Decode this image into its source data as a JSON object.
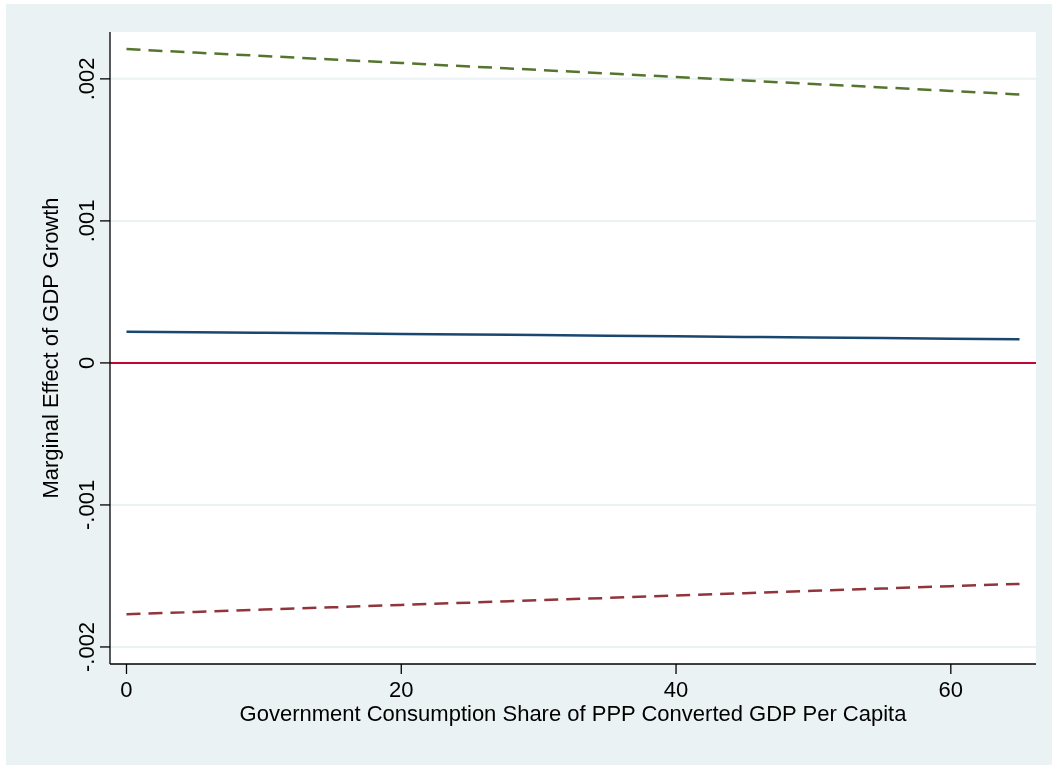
{
  "chart_data": {
    "type": "line",
    "xlabel": "Government Consumption Share of PPP Converted GDP Per Capita",
    "ylabel": "Marginal Effect of GDP Growth",
    "xlim": [
      -1.2,
      66.2
    ],
    "xticks": [
      0,
      20,
      40,
      60
    ],
    "ylim": [
      -0.00212,
      0.00233
    ],
    "yticks": [
      {
        "value": -0.002,
        "label": "-.002"
      },
      {
        "value": -0.001,
        "label": "-.001"
      },
      0,
      {
        "value": 0.001,
        "label": ".001"
      },
      {
        "value": 0.002,
        "label": ".002"
      }
    ],
    "grid": "y",
    "marker": "none",
    "x": [
      0,
      5,
      10,
      15,
      20,
      25,
      30,
      35,
      40,
      45,
      50,
      55,
      60,
      65
    ],
    "series": [
      {
        "color": "#1a476f",
        "line_style": "solid",
        "values": [
          0.00022,
          0.000216,
          0.000212,
          0.000208,
          0.000204,
          0.0002,
          0.000196,
          0.000191,
          0.000187,
          0.000183,
          0.000179,
          0.000175,
          0.000171,
          0.000167
        ]
      },
      {
        "color": "#55752f",
        "line_style": "dashed",
        "values": [
          0.00221,
          0.002185,
          0.002161,
          0.002136,
          0.002112,
          0.002087,
          0.002063,
          0.002038,
          0.002013,
          0.001989,
          0.001964,
          0.00194,
          0.001915,
          0.00189
        ]
      },
      {
        "color": "#90353b",
        "line_style": "dashed",
        "values": [
          -0.00177,
          -0.001754,
          -0.001737,
          -0.001721,
          -0.001704,
          -0.001688,
          -0.001671,
          -0.001655,
          -0.001638,
          -0.001622,
          -0.001605,
          -0.001589,
          -0.001572,
          -0.001556
        ]
      }
    ],
    "ref_lines": [
      {
        "axis": "y",
        "value": 0,
        "color": "#c10534"
      }
    ]
  }
}
